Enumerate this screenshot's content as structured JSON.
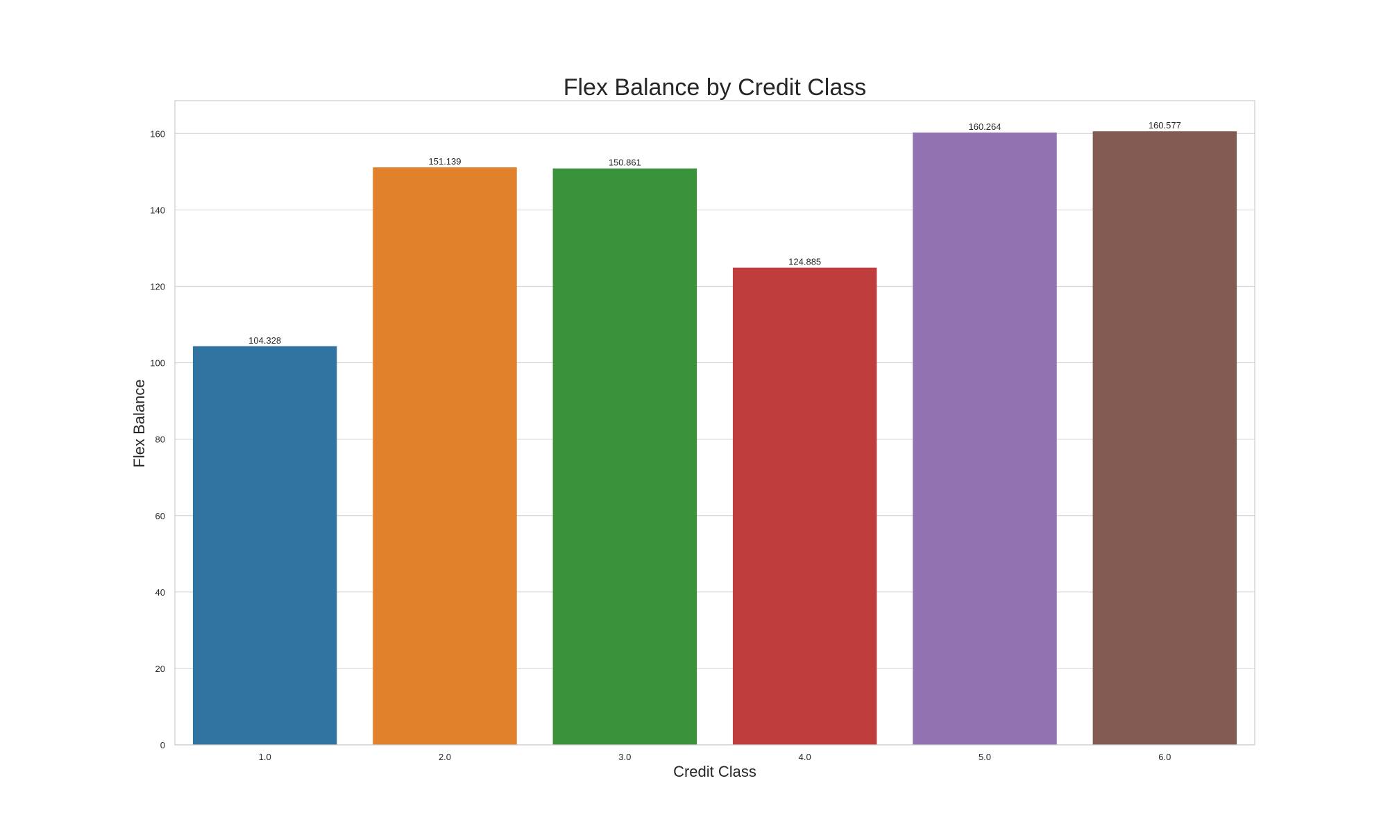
{
  "chart_data": {
    "type": "bar",
    "title": "Flex Balance by Credit Class",
    "xlabel": "Credit Class",
    "ylabel": "Flex Balance",
    "categories": [
      "1.0",
      "2.0",
      "3.0",
      "4.0",
      "5.0",
      "6.0"
    ],
    "values": [
      104.328,
      151.139,
      150.861,
      124.885,
      160.264,
      160.577
    ],
    "data_labels": [
      "104.328",
      "151.139",
      "150.861",
      "124.885",
      "160.264",
      "160.577"
    ],
    "colors": [
      "#3274a1",
      "#e1812c",
      "#3a923a",
      "#c03d3e",
      "#9372b2",
      "#845b53"
    ],
    "ylim": [
      0,
      168.6
    ],
    "yticks": [
      0,
      20,
      40,
      60,
      80,
      100,
      120,
      140,
      160
    ],
    "grid": true,
    "legend": "none"
  }
}
